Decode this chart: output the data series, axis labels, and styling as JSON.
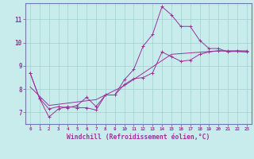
{
  "title": "",
  "xlabel": "Windchill (Refroidissement éolien,°C)",
  "bg_color": "#c8ecec",
  "grid_color": "#a0d0d0",
  "line_color": "#993399",
  "spine_color": "#7777aa",
  "xlim": [
    -0.5,
    23.5
  ],
  "ylim": [
    6.5,
    11.7
  ],
  "xticks": [
    0,
    1,
    2,
    3,
    4,
    5,
    6,
    7,
    8,
    9,
    10,
    11,
    12,
    13,
    14,
    15,
    16,
    17,
    18,
    19,
    20,
    21,
    22,
    23
  ],
  "yticks": [
    7,
    8,
    9,
    10,
    11
  ],
  "series1_x": [
    0,
    1,
    2,
    3,
    4,
    5,
    6,
    7,
    8,
    9,
    10,
    11,
    12,
    13,
    14,
    15,
    16,
    17,
    18,
    19,
    20,
    21,
    22,
    23
  ],
  "series1_y": [
    8.7,
    7.6,
    6.8,
    7.15,
    7.25,
    7.2,
    7.2,
    7.1,
    7.75,
    7.75,
    8.4,
    8.85,
    9.85,
    10.35,
    11.55,
    11.2,
    10.7,
    10.7,
    10.1,
    9.75,
    9.75,
    9.6,
    9.65,
    9.6
  ],
  "series2_x": [
    0,
    1,
    2,
    3,
    4,
    5,
    6,
    7,
    8,
    9,
    10,
    11,
    12,
    13,
    14,
    15,
    16,
    17,
    18,
    19,
    20,
    21,
    22,
    23
  ],
  "series2_y": [
    8.7,
    7.6,
    7.15,
    7.25,
    7.2,
    7.3,
    7.65,
    7.25,
    7.75,
    7.75,
    8.2,
    8.45,
    8.5,
    8.7,
    9.6,
    9.4,
    9.2,
    9.25,
    9.5,
    9.6,
    9.65,
    9.65,
    9.65,
    9.65
  ],
  "series3_x": [
    0,
    2,
    7,
    10,
    15,
    20,
    23
  ],
  "series3_y": [
    8.1,
    7.3,
    7.55,
    8.15,
    9.5,
    9.65,
    9.6
  ]
}
